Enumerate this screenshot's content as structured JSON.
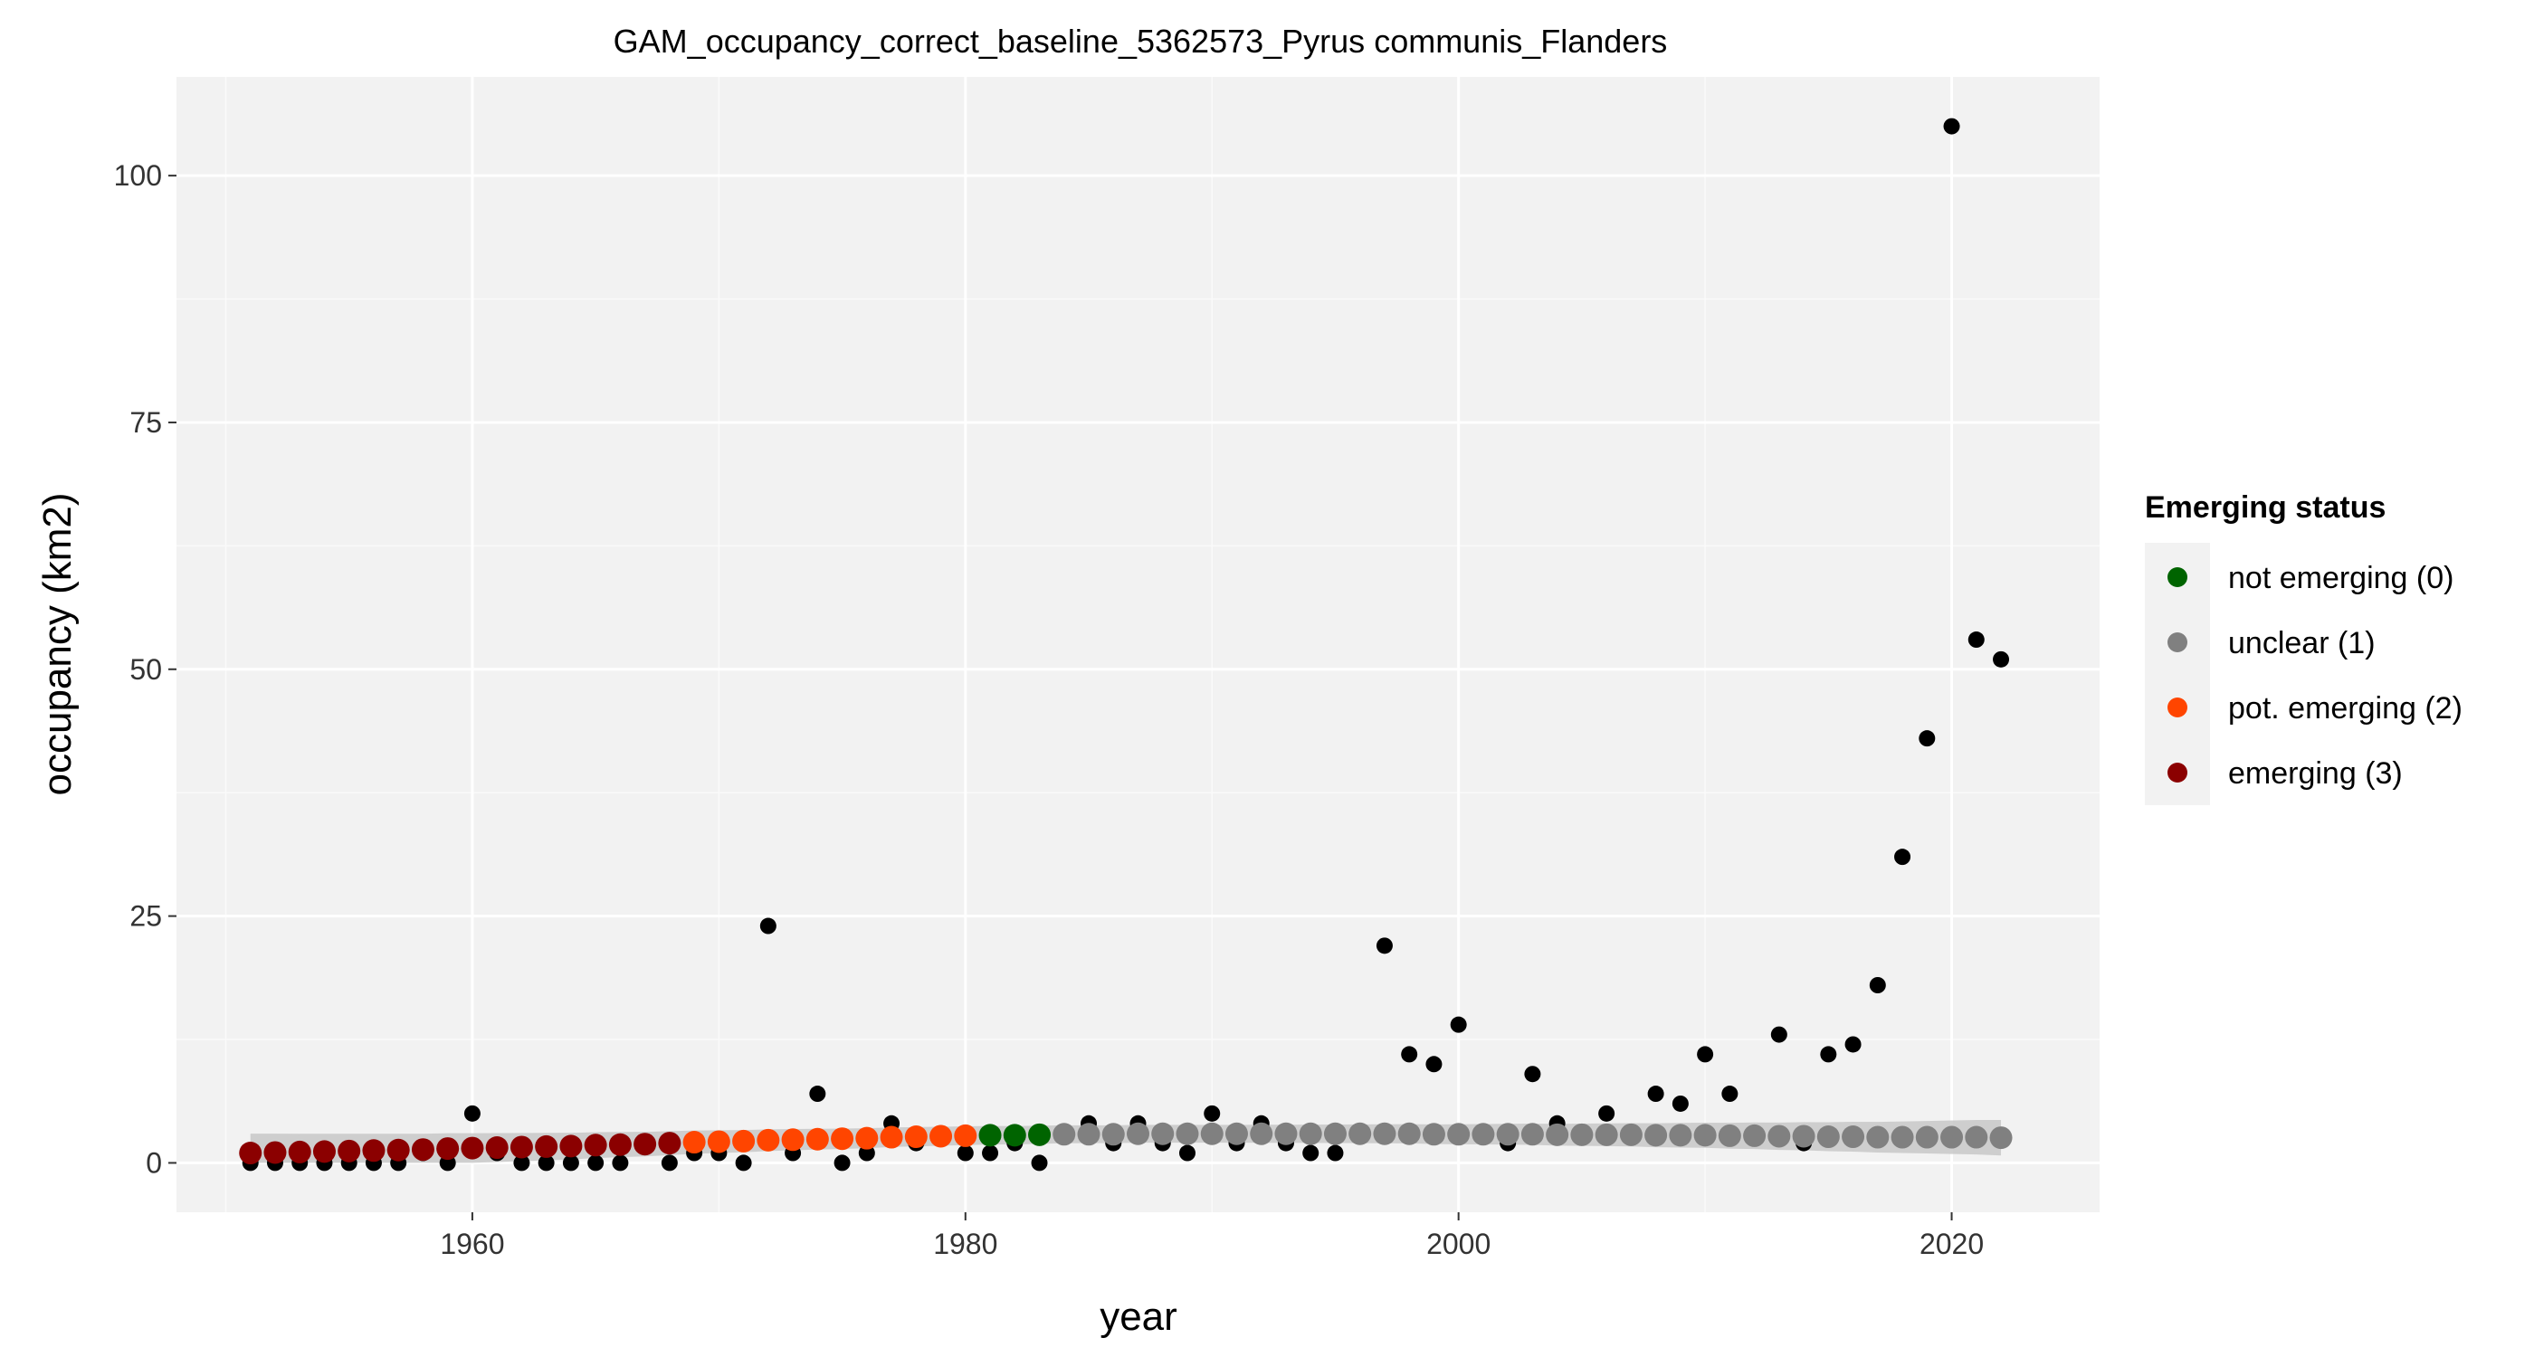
{
  "chart_data": {
    "type": "scatter",
    "title": "GAM_occupancy_correct_baseline_5362573_Pyrus communis_Flanders",
    "xlabel": "year",
    "ylabel": "occupancy (km2)",
    "xlim": [
      1948,
      2026
    ],
    "ylim": [
      -5,
      110
    ],
    "x_ticks": [
      1960,
      1980,
      2000,
      2020
    ],
    "y_ticks": [
      0,
      25,
      50,
      75,
      100
    ],
    "grid": true,
    "legend_placement": "right",
    "legend": {
      "title": "Emerging status",
      "items": [
        {
          "label": "not emerging (0)",
          "color": "#006400"
        },
        {
          "label": "unclear (1)",
          "color": "#808080"
        },
        {
          "label": "pot. emerging (2)",
          "color": "#FF4500"
        },
        {
          "label": "emerging (3)",
          "color": "#8B0000"
        }
      ]
    },
    "observed": {
      "color": "#000000",
      "points": [
        [
          1951,
          0
        ],
        [
          1952,
          0
        ],
        [
          1953,
          0
        ],
        [
          1954,
          0
        ],
        [
          1955,
          0
        ],
        [
          1956,
          0
        ],
        [
          1957,
          0
        ],
        [
          1958,
          1
        ],
        [
          1959,
          0
        ],
        [
          1960,
          5
        ],
        [
          1961,
          1
        ],
        [
          1962,
          0
        ],
        [
          1963,
          0
        ],
        [
          1964,
          0
        ],
        [
          1965,
          0
        ],
        [
          1966,
          0
        ],
        [
          1967,
          2
        ],
        [
          1968,
          0
        ],
        [
          1969,
          1
        ],
        [
          1970,
          1
        ],
        [
          1971,
          0
        ],
        [
          1972,
          24
        ],
        [
          1973,
          1
        ],
        [
          1974,
          7
        ],
        [
          1975,
          0
        ],
        [
          1976,
          1
        ],
        [
          1977,
          4
        ],
        [
          1978,
          2
        ],
        [
          1979,
          3
        ],
        [
          1980,
          1
        ],
        [
          1981,
          1
        ],
        [
          1982,
          2
        ],
        [
          1983,
          0
        ],
        [
          1985,
          4
        ],
        [
          1986,
          2
        ],
        [
          1987,
          4
        ],
        [
          1988,
          2
        ],
        [
          1989,
          1
        ],
        [
          1990,
          5
        ],
        [
          1991,
          2
        ],
        [
          1992,
          4
        ],
        [
          1993,
          2
        ],
        [
          1994,
          1
        ],
        [
          1995,
          1
        ],
        [
          1997,
          22
        ],
        [
          1998,
          11
        ],
        [
          1999,
          10
        ],
        [
          2000,
          14
        ],
        [
          2002,
          2
        ],
        [
          2003,
          9
        ],
        [
          2004,
          4
        ],
        [
          2006,
          5
        ],
        [
          2008,
          7
        ],
        [
          2009,
          6
        ],
        [
          2010,
          11
        ],
        [
          2011,
          7
        ],
        [
          2012,
          3
        ],
        [
          2013,
          13
        ],
        [
          2014,
          2
        ],
        [
          2015,
          11
        ],
        [
          2016,
          12
        ],
        [
          2017,
          18
        ],
        [
          2018,
          31
        ],
        [
          2019,
          43
        ],
        [
          2020,
          105
        ],
        [
          2021,
          53
        ],
        [
          2022,
          51
        ]
      ]
    },
    "fitted": {
      "x": [
        1951,
        1952,
        1953,
        1954,
        1955,
        1956,
        1957,
        1958,
        1959,
        1960,
        1961,
        1962,
        1963,
        1964,
        1965,
        1966,
        1967,
        1968,
        1969,
        1970,
        1971,
        1972,
        1973,
        1974,
        1975,
        1976,
        1977,
        1978,
        1979,
        1980,
        1981,
        1982,
        1983,
        1984,
        1985,
        1986,
        1987,
        1988,
        1989,
        1990,
        1991,
        1992,
        1993,
        1994,
        1995,
        1996,
        1997,
        1998,
        1999,
        2000,
        2001,
        2002,
        2003,
        2004,
        2005,
        2006,
        2007,
        2008,
        2009,
        2010,
        2011,
        2012,
        2013,
        2014,
        2015,
        2016,
        2017,
        2018,
        2019,
        2020,
        2021,
        2022
      ],
      "values": [
        1.0,
        1.05,
        1.1,
        1.15,
        1.2,
        1.25,
        1.3,
        1.35,
        1.45,
        1.5,
        1.55,
        1.6,
        1.65,
        1.7,
        1.8,
        1.85,
        1.9,
        2.0,
        2.1,
        2.15,
        2.2,
        2.3,
        2.35,
        2.4,
        2.45,
        2.5,
        2.6,
        2.65,
        2.7,
        2.75,
        2.8,
        2.8,
        2.85,
        2.9,
        2.9,
        2.9,
        2.95,
        2.95,
        2.95,
        2.95,
        2.95,
        2.95,
        2.95,
        2.95,
        2.95,
        2.95,
        2.95,
        2.95,
        2.9,
        2.9,
        2.9,
        2.9,
        2.9,
        2.85,
        2.85,
        2.85,
        2.85,
        2.8,
        2.8,
        2.8,
        2.75,
        2.75,
        2.7,
        2.7,
        2.65,
        2.65,
        2.6,
        2.6,
        2.6,
        2.6,
        2.6,
        2.55
      ],
      "status": [
        3,
        3,
        3,
        3,
        3,
        3,
        3,
        3,
        3,
        3,
        3,
        3,
        3,
        3,
        3,
        3,
        3,
        3,
        2,
        2,
        2,
        2,
        2,
        2,
        2,
        2,
        2,
        2,
        2,
        2,
        0,
        0,
        0,
        1,
        1,
        1,
        1,
        1,
        1,
        1,
        1,
        1,
        1,
        1,
        1,
        1,
        1,
        1,
        1,
        1,
        1,
        1,
        1,
        1,
        1,
        1,
        1,
        1,
        1,
        1,
        1,
        1,
        1,
        1,
        1,
        1,
        1,
        1,
        1,
        1,
        1,
        1
      ],
      "ribbon_color": "#C8C8C8"
    },
    "colors": {
      "panel_background": "#F2F2F2",
      "grid_major": "#FFFFFF",
      "grid_minor": "#FAFAFA",
      "legend_background": "#F2F2F2"
    }
  }
}
